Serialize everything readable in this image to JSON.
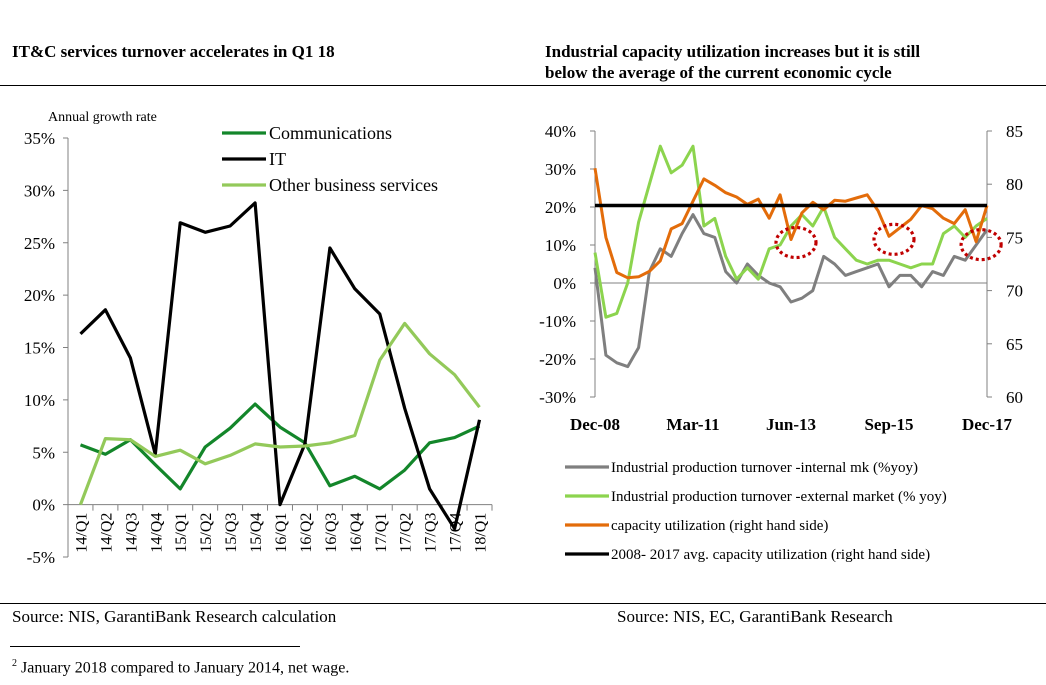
{
  "left_title": "IT&C services turnover accelerates in Q1 18",
  "right_title_line1": "Industrial capacity utilization increases but it is still",
  "right_title_line2": "below the average of the current economic cycle",
  "left_source": "Source: NIS, GarantiBank Research calculation",
  "right_source": "Source: NIS, EC, GarantiBank Research",
  "footnote": {
    "marker": "2",
    "text": " January 2018 compared to January 2014, net wage."
  },
  "chart_data": [
    {
      "type": "line",
      "title": "IT&C services turnover accelerates in Q1 18",
      "ylabel": "Annual growth  rate",
      "ylim": [
        -5,
        35
      ],
      "yticks": [
        -5,
        0,
        5,
        10,
        15,
        20,
        25,
        30,
        35
      ],
      "ytick_labels": [
        "-5%",
        "0%",
        "5%",
        "10%",
        "15%",
        "20%",
        "25%",
        "30%",
        "35%"
      ],
      "categories": [
        "14/Q1",
        "14/Q2",
        "14/Q3",
        "14/Q4",
        "15/Q1",
        "15/Q2",
        "15/Q3",
        "15/Q4",
        "16/Q1",
        "16/Q2",
        "16/Q3",
        "16/Q4",
        "17/Q1",
        "17/Q2",
        "17/Q3",
        "17/Q4",
        "18/Q1"
      ],
      "legend_position": "top-center",
      "grid": false,
      "series": [
        {
          "name": "Communications",
          "color": "#13862a",
          "values": [
            5.7,
            4.8,
            6.2,
            3.8,
            1.5,
            5.5,
            7.3,
            9.6,
            7.4,
            5.9,
            1.8,
            2.7,
            1.5,
            3.3,
            5.9,
            6.4,
            7.5
          ]
        },
        {
          "name": "IT",
          "color": "#000000",
          "values": [
            16.3,
            18.6,
            14.0,
            4.8,
            26.9,
            26.0,
            26.6,
            28.8,
            0.0,
            5.8,
            24.5,
            20.6,
            18.2,
            9.2,
            1.5,
            -2.3,
            8.1
          ]
        },
        {
          "name": "Other business services",
          "color": "#93c95a",
          "values": [
            0.0,
            6.3,
            6.2,
            4.6,
            5.2,
            3.9,
            4.7,
            5.8,
            5.5,
            5.6,
            5.9,
            6.6,
            13.8,
            17.3,
            14.4,
            12.4,
            9.3
          ]
        }
      ]
    },
    {
      "type": "line",
      "title": "Industrial capacity utilization increases but it is still below the average of the current economic cycle",
      "ylim": [
        -30,
        40
      ],
      "y2lim": [
        60,
        85
      ],
      "yticks": [
        -30,
        -20,
        -10,
        0,
        10,
        20,
        30,
        40
      ],
      "ytick_labels": [
        "-30%",
        "-20%",
        "-10%",
        "0%",
        "10%",
        "20%",
        "30%",
        "40%"
      ],
      "y2ticks": [
        60,
        65,
        70,
        75,
        80,
        85
      ],
      "y2tick_labels": [
        "60",
        "65",
        "70",
        "75",
        "80",
        "85"
      ],
      "x_tick_labels": [
        "Dec-08",
        "Mar-11",
        "Jun-13",
        "Sep-15",
        "Dec-17"
      ],
      "x_tick_index": [
        0,
        9,
        18,
        27,
        36
      ],
      "x_count": 37,
      "legend_position": "bottom",
      "grid": false,
      "annotations": [
        "dotted red ellipses around capacity utilization dips at Mar-13, Jun-15 and Sep-17"
      ],
      "series": [
        {
          "name": "Industrial production turnover -internal mk (%yoy)",
          "color": "#7f7f7f",
          "axis": "left",
          "values": [
            4.0,
            -19.0,
            -21.0,
            -22.0,
            -17.0,
            3.0,
            9.0,
            7.0,
            13.0,
            18.0,
            13.0,
            12.0,
            3.0,
            0.0,
            5.0,
            2.0,
            0.0,
            -1.0,
            -5.0,
            -4.0,
            -2.0,
            7.0,
            5.0,
            2.0,
            3.0,
            4.0,
            5.0,
            -1.0,
            2.0,
            2.0,
            -1.0,
            3.0,
            2.0,
            7.0,
            6.0,
            10.0,
            14.0
          ]
        },
        {
          "name": "Industrial production turnover -external market (% yoy)",
          "color": "#8cd44e",
          "axis": "left",
          "values": [
            8.0,
            -9.0,
            -8.0,
            0.0,
            16.0,
            26.0,
            36.0,
            29.0,
            31.0,
            36.0,
            15.0,
            17.0,
            7.0,
            1.0,
            4.0,
            1.0,
            9.0,
            10.0,
            15.0,
            18.0,
            15.0,
            20.0,
            12.0,
            9.0,
            6.0,
            5.0,
            6.0,
            6.0,
            5.0,
            4.0,
            5.0,
            5.0,
            13.0,
            15.0,
            12.0,
            15.0,
            17.0
          ]
        },
        {
          "name": "capacity utilization (right hand side)",
          "color": "#e36c0a",
          "axis": "right",
          "values": [
            81.5,
            75.0,
            71.7,
            71.2,
            71.3,
            71.8,
            72.8,
            75.8,
            76.3,
            78.4,
            80.5,
            79.9,
            79.2,
            78.8,
            78.1,
            78.6,
            76.8,
            79.0,
            74.8,
            77.3,
            78.3,
            77.6,
            78.5,
            78.4,
            78.7,
            79.0,
            77.5,
            75.1,
            75.9,
            76.7,
            78.0,
            77.7,
            76.8,
            76.3,
            77.6,
            74.6,
            78.0
          ]
        },
        {
          "name": "2008- 2017 avg. capacity utilization (right hand side)",
          "color": "#000000",
          "axis": "right",
          "values": [
            78.0,
            78.0,
            78.0,
            78.0,
            78.0,
            78.0,
            78.0,
            78.0,
            78.0,
            78.0,
            78.0,
            78.0,
            78.0,
            78.0,
            78.0,
            78.0,
            78.0,
            78.0,
            78.0,
            78.0,
            78.0,
            78.0,
            78.0,
            78.0,
            78.0,
            78.0,
            78.0,
            78.0,
            78.0,
            78.0,
            78.0,
            78.0,
            78.0,
            78.0,
            78.0,
            78.0,
            78.0
          ]
        }
      ]
    }
  ]
}
